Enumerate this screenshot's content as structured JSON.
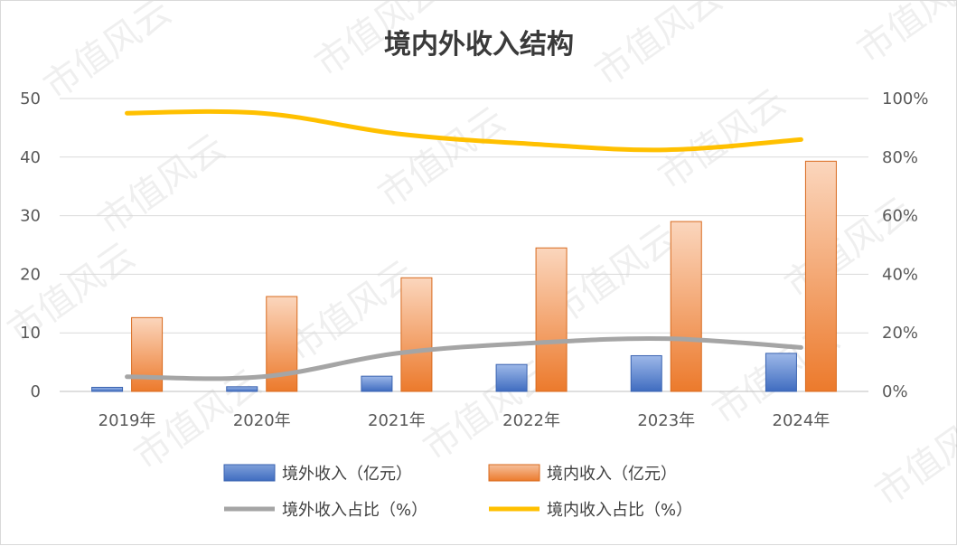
{
  "chart_data": {
    "type": "bar",
    "title": "境内外收入结构",
    "categories": [
      "2019年",
      "2020年",
      "2021年",
      "2022年",
      "2023年",
      "2024年"
    ],
    "series": [
      {
        "name": "境外收入（亿元）",
        "kind": "bar",
        "axis": "left",
        "color": "#4472c4",
        "values": [
          0.7,
          0.8,
          2.6,
          4.6,
          6.1,
          6.5
        ]
      },
      {
        "name": "境内收入（亿元）",
        "kind": "bar",
        "axis": "left",
        "color": "#ed7d31",
        "values": [
          12.6,
          16.2,
          19.4,
          24.5,
          29.0,
          39.3
        ]
      },
      {
        "name": "境外收入占比（%）",
        "kind": "line",
        "axis": "right",
        "color": "#a5a5a5",
        "values": [
          5,
          5,
          13,
          16.5,
          18,
          15
        ]
      },
      {
        "name": "境内收入占比（%）",
        "kind": "line",
        "axis": "right",
        "color": "#ffc000",
        "values": [
          95,
          95,
          88,
          84.5,
          82.5,
          86
        ]
      }
    ],
    "y_left": {
      "min": 0,
      "max": 50,
      "ticks": [
        0,
        10,
        20,
        30,
        40,
        50
      ]
    },
    "y_right": {
      "min": 0,
      "max": 100,
      "ticks": [
        "0%",
        "20%",
        "40%",
        "60%",
        "80%",
        "100%"
      ]
    },
    "grid": true,
    "legend_position": "bottom",
    "watermark": "市值风云"
  }
}
